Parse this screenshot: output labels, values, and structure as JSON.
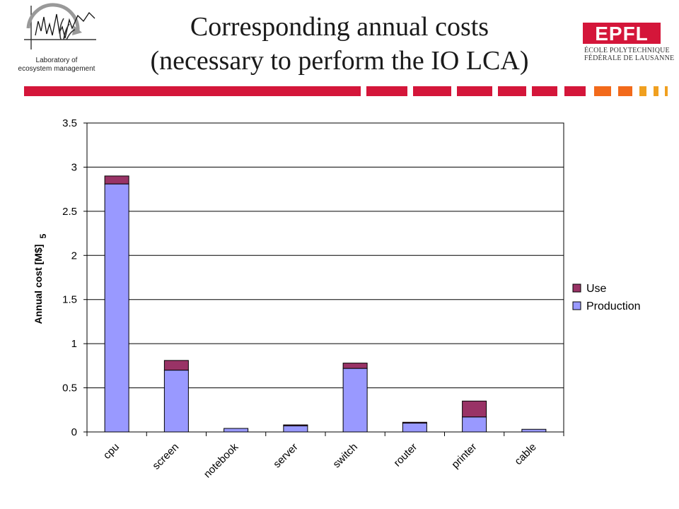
{
  "header": {
    "lab_line1": "Laboratory of",
    "lab_line2": "ecosystem management",
    "title_line1": "Corresponding annual costs",
    "title_line2": "(necessary to perform the IO LCA)",
    "epfl_logo_text": "EPFL",
    "epfl_line1": "ÉCOLE POLYTECHNIQUE",
    "epfl_line2": "FÉDÉRALE DE LAUSANNE"
  },
  "colors": {
    "accent_red": "#d4163a",
    "accent_orange": "#f26a1b",
    "accent_yellow": "#f0a020",
    "production": "#9999ff",
    "use": "#993366"
  },
  "chart_data": {
    "type": "bar",
    "stacked": true,
    "categories": [
      "cpu",
      "screen",
      "notebook",
      "server",
      "switch",
      "router",
      "printer",
      "cable"
    ],
    "series": [
      {
        "name": "Production",
        "color": "#9999ff",
        "values": [
          2.81,
          0.7,
          0.04,
          0.07,
          0.72,
          0.1,
          0.17,
          0.03
        ]
      },
      {
        "name": "Use",
        "color": "#993366",
        "values": [
          0.09,
          0.11,
          0.0,
          0.01,
          0.06,
          0.01,
          0.18,
          0.0
        ]
      }
    ],
    "ylabel": "Annual cost [M$]",
    "side_mark": "5",
    "ylim": [
      0,
      3.5
    ],
    "yticks": [
      "0",
      "0.5",
      "1",
      "1.5",
      "2",
      "2.5",
      "3",
      "3.5"
    ],
    "ytick_values": [
      0,
      0.5,
      1,
      1.5,
      2,
      2.5,
      3,
      3.5
    ],
    "grid": true,
    "legend_position": "right",
    "legend_order": [
      "Use",
      "Production"
    ]
  }
}
